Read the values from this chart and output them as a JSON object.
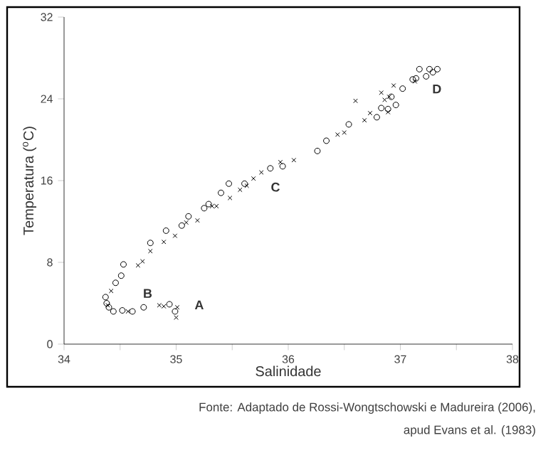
{
  "chart_data": {
    "type": "scatter",
    "xlabel": "Salinidade",
    "ylabel": "Temperatura ($^{o}$C)",
    "xlim": [
      34,
      38
    ],
    "ylim": [
      0,
      32
    ],
    "xticks": [
      34,
      {
        "value": 34.5,
        "label": null
      },
      35,
      {
        "value": 35.5,
        "label": null
      },
      36,
      {
        "value": 36.5,
        "label": null
      },
      37,
      {
        "value": 37.5,
        "label": null
      },
      38
    ],
    "yticks": [
      0,
      8,
      16,
      24,
      32
    ],
    "series": [
      {
        "color": "#000000",
        "marker": "circle",
        "x": [
          34.37,
          34.38,
          34.4,
          34.44,
          34.52,
          34.61,
          34.71,
          34.94,
          34.99,
          34.46,
          34.51,
          34.53,
          34.77,
          34.91,
          35.05,
          35.11,
          35.25,
          35.29,
          35.4,
          35.47,
          35.61,
          35.84,
          35.95,
          36.26,
          36.34,
          36.54,
          36.79,
          36.83,
          36.89,
          36.96,
          37.02,
          37.11,
          37.14,
          37.17,
          37.23,
          37.26,
          37.29,
          37.33,
          36.92
        ],
        "values": [
          4.6,
          4.0,
          3.6,
          3.2,
          3.3,
          3.2,
          3.6,
          3.9,
          3.2,
          6.0,
          6.7,
          7.8,
          9.9,
          11.1,
          11.6,
          12.5,
          13.3,
          13.7,
          14.8,
          15.7,
          15.7,
          17.2,
          17.4,
          18.9,
          19.9,
          21.5,
          22.2,
          23.1,
          23.0,
          23.4,
          25.0,
          25.9,
          26.0,
          26.9,
          26.2,
          26.9,
          26.6,
          26.9,
          24.2
        ]
      },
      {
        "color": "#000000",
        "marker": "cross",
        "x": [
          34.42,
          34.39,
          34.57,
          34.85,
          34.89,
          35.0,
          35.01,
          34.66,
          34.7,
          34.77,
          34.89,
          34.99,
          35.09,
          35.19,
          35.32,
          35.36,
          35.48,
          35.57,
          35.63,
          35.69,
          35.76,
          35.93,
          36.05,
          36.44,
          36.5,
          36.6,
          36.68,
          36.73,
          36.83,
          36.86,
          36.9,
          36.94,
          36.89,
          37.13
        ],
        "values": [
          5.2,
          3.8,
          3.2,
          3.8,
          3.7,
          2.6,
          3.6,
          7.7,
          8.1,
          9.1,
          10.0,
          10.6,
          11.9,
          12.1,
          13.5,
          13.5,
          14.3,
          15.1,
          15.5,
          16.2,
          16.8,
          17.8,
          18.0,
          20.5,
          20.7,
          23.8,
          21.9,
          22.6,
          24.6,
          23.9,
          24.2,
          25.3,
          22.7,
          25.7
        ]
      }
    ],
    "annotations": [
      "A",
      "B",
      "C",
      "D",
      "Fonte: Adaptado de Rossi-Wongtschowski e Madureira (2006),",
      "apud Evans et al. (1983)"
    ]
  }
}
